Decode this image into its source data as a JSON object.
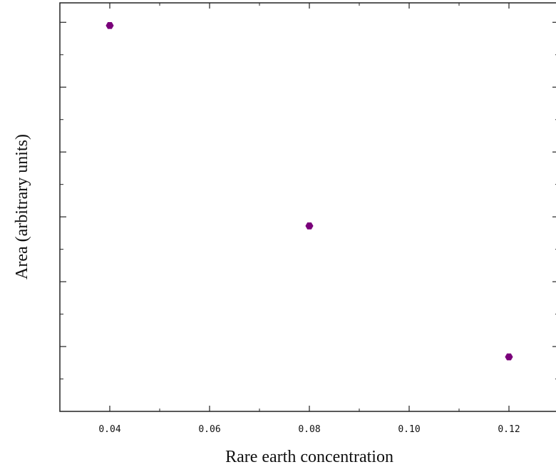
{
  "chart_data": {
    "type": "scatter",
    "title": "",
    "xlabel": "Rare earth concentration",
    "ylabel": "Area (arbitrary units)",
    "xlim": [
      0.03,
      0.13
    ],
    "ylim": [
      0,
      6.3
    ],
    "x_ticks": [
      "0.04",
      "0.06",
      "0.08",
      "0.10",
      "0.12"
    ],
    "x_tick_values": [
      0.04,
      0.06,
      0.08,
      0.1,
      0.12
    ],
    "y_tick_values": [
      1,
      2,
      3,
      4,
      5,
      6
    ],
    "y_tick_labels_visible": false,
    "grid": false,
    "series": [
      {
        "color": "#7a007a",
        "marker": "hexagon",
        "points": [
          {
            "x": 0.04,
            "y": 5.95
          },
          {
            "x": 0.08,
            "y": 2.86
          },
          {
            "x": 0.12,
            "y": 0.84
          }
        ]
      }
    ]
  }
}
